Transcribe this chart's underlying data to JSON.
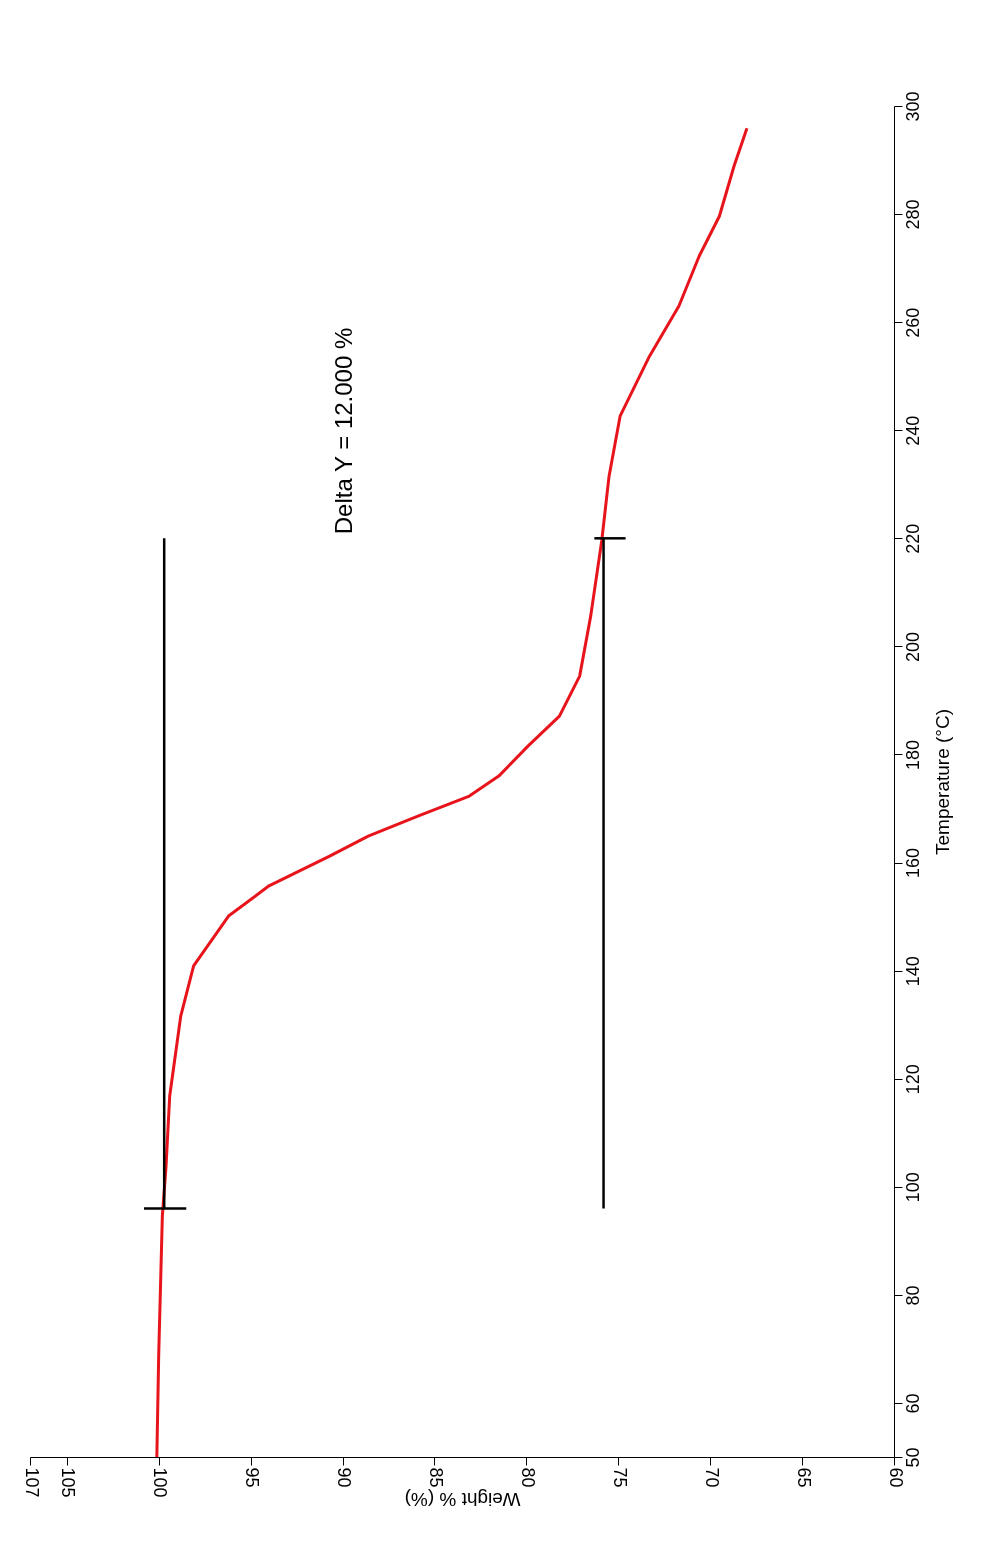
{
  "chart_data": {
    "type": "line",
    "xlabel": "Weight % (%)",
    "ylabel": "Temperature (°C)",
    "xlim": [
      107,
      60
    ],
    "xticks": [
      107,
      105,
      100,
      95,
      90,
      85,
      80,
      75,
      70,
      65,
      60
    ],
    "ylim": [
      50,
      300
    ],
    "yticks": [
      50,
      60,
      80,
      100,
      120,
      140,
      160,
      180,
      200,
      220,
      240,
      260,
      280,
      300
    ],
    "grid": false,
    "line_style": "solid",
    "annotations": [
      "Delta Y = 12.000 %"
    ],
    "series": [
      {
        "color": "#e8141c",
        "x": [
          100.1,
          100,
          99.8,
          99.6,
          99.4,
          98.8,
          98.1,
          96.2,
          94,
          90.7,
          88.6,
          85.9,
          83.1,
          81.5,
          79.9,
          78.2,
          77.1,
          76.5,
          75.9,
          75.5,
          74.9,
          73.3,
          71.7,
          70.6,
          69.5,
          68.7,
          68
        ],
        "values": [
          50,
          68.7,
          94.6,
          103.8,
          116.8,
          131.6,
          140.9,
          150.1,
          155.7,
          161.2,
          164.9,
          168.6,
          172.3,
          176,
          181.6,
          187.1,
          194.5,
          205.6,
          219.5,
          231.5,
          242.6,
          253.7,
          263,
          272.2,
          279.6,
          288.9,
          295.9
        ]
      },
      {
        "color": "#000000",
        "x": [
          99.7,
          99.7
        ],
        "values": [
          96,
          220
        ]
      },
      {
        "color": "#000000",
        "x": [
          75.8,
          75.8
        ],
        "values": [
          96,
          220
        ]
      },
      {
        "color": "#000000",
        "x": [
          100.8,
          98.5
        ],
        "values": [
          96,
          96
        ]
      },
      {
        "color": "#000000",
        "x": [
          76.3,
          74.6
        ],
        "values": [
          220,
          220
        ]
      }
    ]
  }
}
